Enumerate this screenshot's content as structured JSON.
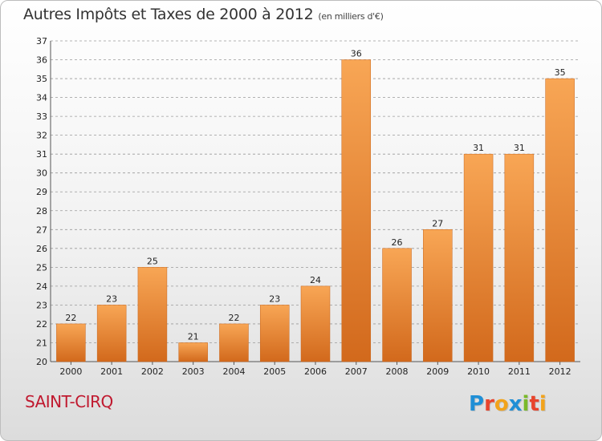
{
  "title": "Autres Impôts et Taxes de 2000 à 2012",
  "unit_note": "(en milliers d'€)",
  "place": "SAINT-CIRQ",
  "logo": {
    "text": "Proxiti",
    "letters": [
      {
        "ch": "P",
        "color": "#1f8fd6"
      },
      {
        "ch": "r",
        "color": "#e8442c"
      },
      {
        "ch": "o",
        "color": "#f2a31b"
      },
      {
        "ch": "x",
        "color": "#1f8fd6"
      },
      {
        "ch": "i",
        "color": "#7ab929"
      },
      {
        "ch": "t",
        "color": "#e8442c"
      },
      {
        "ch": "i",
        "color": "#f2a31b"
      }
    ]
  },
  "colors": {
    "bar_light": "#f8a655",
    "bar_dark": "#d2691c",
    "grid": "#9a9a9a",
    "title": "#333333",
    "place": "#c0192f"
  },
  "chart_data": {
    "type": "bar",
    "categories": [
      "2000",
      "2001",
      "2002",
      "2003",
      "2004",
      "2005",
      "2006",
      "2007",
      "2008",
      "2009",
      "2010",
      "2011",
      "2012"
    ],
    "values": [
      22,
      23,
      25,
      21,
      22,
      23,
      24,
      36,
      26,
      27,
      31,
      31,
      35
    ],
    "ylim": [
      20,
      37
    ],
    "yticks": [
      20,
      21,
      22,
      23,
      24,
      25,
      26,
      27,
      28,
      29,
      30,
      31,
      32,
      33,
      34,
      35,
      36,
      37
    ],
    "grid": true,
    "grid_style": "dashed-horizontal",
    "data_labels": true
  }
}
